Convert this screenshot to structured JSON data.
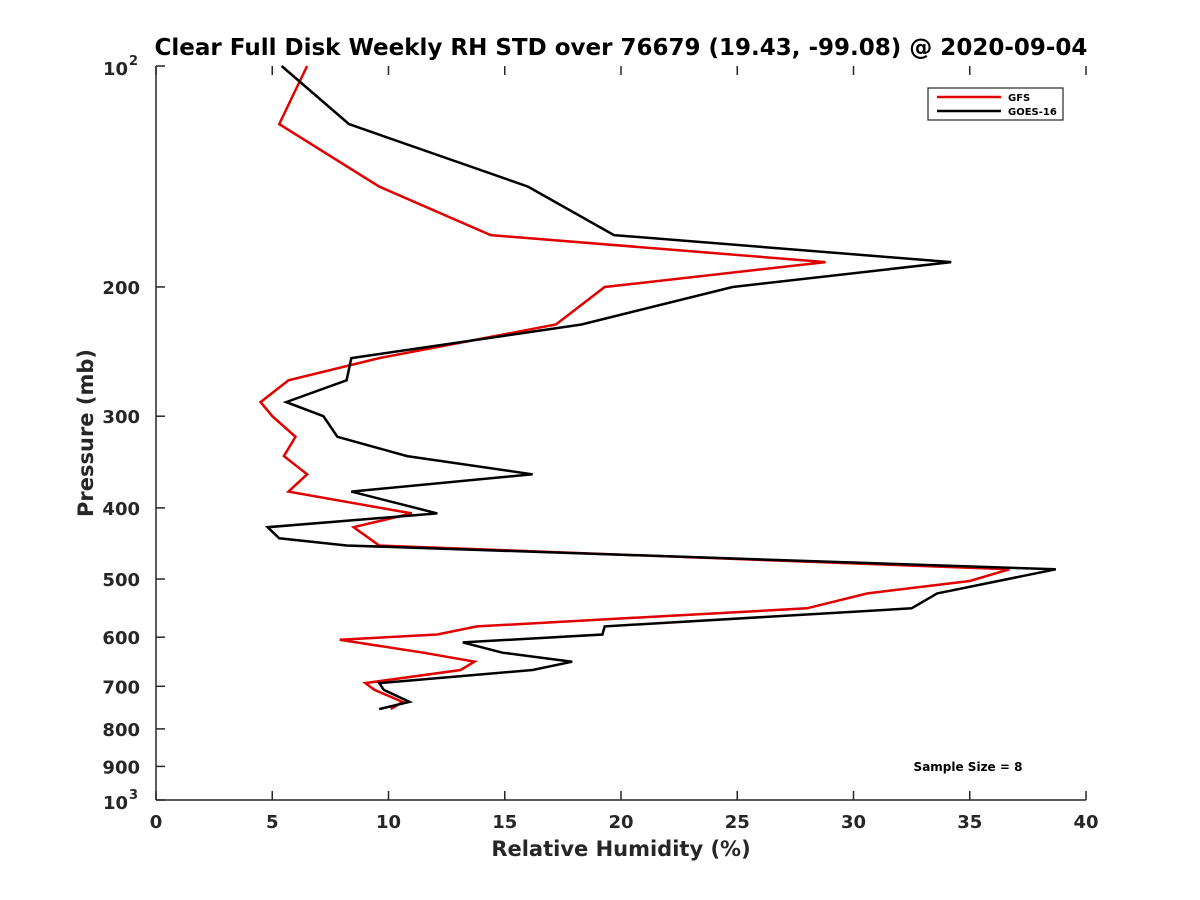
{
  "chart_data": {
    "type": "line",
    "title": "Clear Full Disk Weekly RH STD over 76679 (19.43, -99.08) @ 2020-09-04",
    "xlabel": "Relative Humidity (%)",
    "ylabel": "Pressure (mb)",
    "xlim": [
      0,
      40
    ],
    "ylim": [
      100,
      1000
    ],
    "y_scale": "log",
    "y_reversed": true,
    "grid": false,
    "legend_position": "top-right",
    "x_ticks": [
      "0",
      "5",
      "10",
      "15",
      "20",
      "25",
      "30",
      "35",
      "40"
    ],
    "y_ticks": [
      {
        "base": "10",
        "exp": "2",
        "value": 100
      },
      {
        "label": "200",
        "value": 200
      },
      {
        "label": "300",
        "value": 300
      },
      {
        "label": "400",
        "value": 400
      },
      {
        "label": "500",
        "value": 500
      },
      {
        "label": "600",
        "value": 600
      },
      {
        "label": "700",
        "value": 700
      },
      {
        "label": "800",
        "value": 800
      },
      {
        "label": "900",
        "value": 900
      },
      {
        "base": "10",
        "exp": "3",
        "value": 1000
      }
    ],
    "annotation": "Sample Size = 8",
    "series": [
      {
        "name": "GFS",
        "color": "#e00000",
        "points": [
          [
            6.5,
            100
          ],
          [
            5.3,
            120
          ],
          [
            9.6,
            146
          ],
          [
            14.4,
            170
          ],
          [
            28.8,
            185
          ],
          [
            19.3,
            200
          ],
          [
            17.2,
            225
          ],
          [
            9.6,
            250
          ],
          [
            5.7,
            268
          ],
          [
            4.5,
            287
          ],
          [
            5.0,
            300
          ],
          [
            6.0,
            320
          ],
          [
            5.5,
            340
          ],
          [
            6.5,
            360
          ],
          [
            5.7,
            380
          ],
          [
            11.0,
            407
          ],
          [
            8.5,
            425
          ],
          [
            9.6,
            450
          ],
          [
            36.7,
            485
          ],
          [
            35.0,
            503
          ],
          [
            30.6,
            523
          ],
          [
            28.0,
            548
          ],
          [
            13.8,
            580
          ],
          [
            12.1,
            595
          ],
          [
            7.9,
            605
          ],
          [
            11.5,
            630
          ],
          [
            13.7,
            648
          ],
          [
            13.1,
            665
          ],
          [
            9.0,
            693
          ],
          [
            9.4,
            708
          ],
          [
            10.6,
            735
          ],
          [
            10.1,
            752
          ]
        ]
      },
      {
        "name": "GOES-16",
        "color": "#000000",
        "points": [
          [
            5.4,
            100
          ],
          [
            8.3,
            120
          ],
          [
            16.0,
            146
          ],
          [
            19.7,
            170
          ],
          [
            34.2,
            185
          ],
          [
            24.8,
            200
          ],
          [
            18.3,
            225
          ],
          [
            8.4,
            250
          ],
          [
            8.2,
            268
          ],
          [
            5.6,
            287
          ],
          [
            7.2,
            300
          ],
          [
            7.8,
            320
          ],
          [
            10.8,
            340
          ],
          [
            16.2,
            360
          ],
          [
            8.4,
            380
          ],
          [
            12.1,
            407
          ],
          [
            4.8,
            425
          ],
          [
            5.3,
            440
          ],
          [
            8.2,
            450
          ],
          [
            38.7,
            485
          ],
          [
            33.6,
            523
          ],
          [
            32.5,
            548
          ],
          [
            19.3,
            580
          ],
          [
            19.2,
            595
          ],
          [
            13.2,
            610
          ],
          [
            14.9,
            630
          ],
          [
            17.9,
            648
          ],
          [
            16.2,
            665
          ],
          [
            9.6,
            693
          ],
          [
            9.8,
            708
          ],
          [
            10.9,
            735
          ],
          [
            9.6,
            752
          ]
        ]
      }
    ]
  }
}
